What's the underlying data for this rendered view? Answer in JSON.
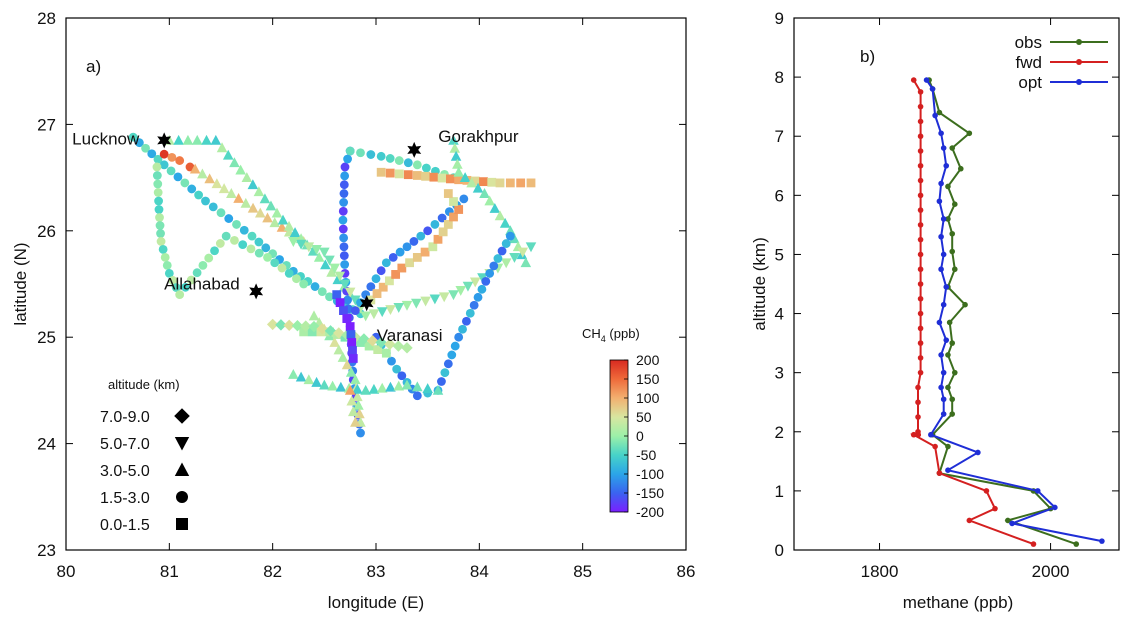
{
  "chart_data": [
    {
      "panel_label": "a)",
      "type": "scatter",
      "xlabel": "longitude (E)",
      "ylabel": "latitude (N)",
      "xlim": [
        80,
        86
      ],
      "ylim": [
        23,
        28
      ],
      "xticks": [
        80,
        81,
        82,
        83,
        84,
        85,
        86
      ],
      "yticks": [
        23,
        24,
        25,
        26,
        27,
        28
      ],
      "grid": false,
      "cities": [
        {
          "name": "Lucknow",
          "lon": 80.95,
          "lat": 26.85
        },
        {
          "name": "Gorakhpur",
          "lon": 83.37,
          "lat": 26.76
        },
        {
          "name": "Allahabad",
          "lon": 81.84,
          "lat": 25.43
        },
        {
          "name": "Varanasi",
          "lon": 82.91,
          "lat": 25.32
        }
      ],
      "colorbar": {
        "title": "CH",
        "title_sub": "4",
        "title_unit": " (ppb)",
        "min": -200,
        "max": 200,
        "ticks": [
          "200",
          "150",
          "100",
          "50",
          "0",
          "-50",
          "-100",
          "-150",
          "-200"
        ],
        "colors": [
          "#7b1fff",
          "#3a63f0",
          "#2ba5e8",
          "#47d3c8",
          "#9cf0a8",
          "#d8e6a0",
          "#f2b070",
          "#ef6a3a",
          "#d82a20"
        ]
      },
      "marker_legend": {
        "title": "altitude (km)",
        "entries": [
          {
            "label": "7.0-9.0",
            "marker": "diamond"
          },
          {
            "label": "5.0-7.0",
            "marker": "triangle-down"
          },
          {
            "label": "3.0-5.0",
            "marker": "triangle-up"
          },
          {
            "label": "1.5-3.0",
            "marker": "circle"
          },
          {
            "label": "0.0-1.5",
            "marker": "square"
          }
        ]
      },
      "tracks": [
        {
          "marker": "circle",
          "value": -60,
          "points": [
            [
              80.65,
              26.88
            ],
            [
              80.95,
              26.62
            ],
            [
              81.35,
              26.28
            ],
            [
              81.8,
              25.95
            ],
            [
              82.2,
              25.62
            ],
            [
              82.55,
              25.38
            ],
            [
              82.85,
              25.22
            ]
          ]
        },
        {
          "marker": "circle",
          "value": 160,
          "points": [
            [
              80.95,
              26.72
            ],
            [
              81.1,
              26.66
            ],
            [
              81.2,
              26.6
            ]
          ]
        },
        {
          "marker": "triangle-up",
          "value": 60,
          "points": [
            [
              81.25,
              26.58
            ],
            [
              81.6,
              26.35
            ],
            [
              81.95,
              26.12
            ],
            [
              82.3,
              25.9
            ]
          ]
        },
        {
          "marker": "triangle-up",
          "value": -20,
          "points": [
            [
              81.0,
              26.85
            ],
            [
              81.45,
              26.85
            ],
            [
              81.75,
              26.5
            ],
            [
              82.1,
              26.1
            ],
            [
              82.45,
              25.75
            ],
            [
              82.75,
              25.4
            ]
          ]
        },
        {
          "marker": "circle",
          "value": -10,
          "points": [
            [
              80.88,
              26.6
            ],
            [
              80.9,
              26.2
            ],
            [
              80.92,
              25.9
            ],
            [
              81.0,
              25.6
            ],
            [
              81.1,
              25.4
            ],
            [
              81.55,
              25.95
            ],
            [
              81.95,
              25.75
            ],
            [
              82.3,
              25.5
            ]
          ]
        },
        {
          "marker": "circle",
          "value": -140,
          "points": [
            [
              82.85,
              24.1
            ],
            [
              82.78,
              24.6
            ],
            [
              82.75,
              25.1
            ],
            [
              82.7,
              25.6
            ],
            [
              82.68,
              26.1
            ],
            [
              82.7,
              26.6
            ],
            [
              82.75,
              26.75
            ]
          ]
        },
        {
          "marker": "circle",
          "value": -40,
          "points": [
            [
              82.75,
              26.75
            ],
            [
              83.05,
              26.7
            ],
            [
              83.4,
              26.62
            ],
            [
              83.75,
              26.5
            ]
          ]
        },
        {
          "marker": "square",
          "value": 90,
          "points": [
            [
              83.05,
              26.55
            ],
            [
              83.4,
              26.52
            ],
            [
              83.8,
              26.48
            ],
            [
              84.2,
              26.45
            ],
            [
              84.5,
              26.45
            ]
          ]
        },
        {
          "marker": "triangle-up",
          "value": -20,
          "points": [
            [
              83.75,
              26.85
            ],
            [
              83.8,
              26.55
            ],
            [
              84.05,
              26.35
            ],
            [
              84.3,
              26.0
            ],
            [
              84.45,
              25.7
            ]
          ]
        },
        {
          "marker": "triangle-down",
          "value": 0,
          "points": [
            [
              84.5,
              25.85
            ],
            [
              84.1,
              25.6
            ],
            [
              83.75,
              25.4
            ],
            [
              83.3,
              25.3
            ],
            [
              82.9,
              25.2
            ],
            [
              82.5,
              25.8
            ],
            [
              82.2,
              25.9
            ]
          ]
        },
        {
          "marker": "circle",
          "value": -110,
          "points": [
            [
              83.0,
              25.0
            ],
            [
              83.2,
              24.7
            ],
            [
              83.4,
              24.45
            ],
            [
              83.6,
              24.5
            ],
            [
              83.8,
              25.0
            ],
            [
              84.1,
              25.6
            ],
            [
              84.3,
              25.95
            ]
          ]
        },
        {
          "marker": "circle",
          "value": -120,
          "points": [
            [
              82.8,
              25.25
            ],
            [
              83.1,
              25.7
            ],
            [
              83.5,
              26.0
            ],
            [
              83.85,
              26.3
            ]
          ]
        },
        {
          "marker": "square",
          "value": 80,
          "points": [
            [
              82.95,
              25.35
            ],
            [
              83.25,
              25.65
            ],
            [
              83.55,
              25.85
            ],
            [
              83.8,
              26.2
            ],
            [
              83.7,
              26.35
            ]
          ]
        },
        {
          "marker": "triangle-up",
          "value": 30,
          "points": [
            [
              82.4,
              25.2
            ],
            [
              82.6,
              24.95
            ],
            [
              82.8,
              24.6
            ],
            [
              82.85,
              24.2
            ]
          ]
        },
        {
          "marker": "square",
          "value": 10,
          "points": [
            [
              82.3,
              25.05
            ],
            [
              82.55,
              25.05
            ],
            [
              82.85,
              24.95
            ],
            [
              83.1,
              24.85
            ]
          ]
        },
        {
          "marker": "triangle-up",
          "value": -30,
          "points": [
            [
              82.2,
              24.65
            ],
            [
              82.5,
              24.55
            ],
            [
              82.9,
              24.5
            ],
            [
              83.3,
              24.55
            ],
            [
              83.6,
              24.5
            ]
          ]
        },
        {
          "marker": "diamond",
          "value": 20,
          "points": [
            [
              82.0,
              25.12
            ],
            [
              82.4,
              25.1
            ],
            [
              82.8,
              25.0
            ],
            [
              83.3,
              24.9
            ]
          ]
        },
        {
          "marker": "square",
          "value": -190,
          "points": [
            [
              82.62,
              25.4
            ],
            [
              82.75,
              25.1
            ],
            [
              82.78,
              24.8
            ]
          ]
        },
        {
          "marker": "triangle-up",
          "value": 70,
          "points": [
            [
              82.75,
              24.5
            ],
            [
              82.78,
              24.3
            ],
            [
              82.8,
              24.2
            ]
          ]
        }
      ]
    },
    {
      "panel_label": "b)",
      "type": "line",
      "xlabel": "methane (ppb)",
      "ylabel": "altitude (km)",
      "xlim": [
        1700,
        2080
      ],
      "ylim": [
        0,
        9
      ],
      "xticks": [
        1800,
        2000
      ],
      "yticks": [
        0,
        1,
        2,
        3,
        4,
        5,
        6,
        7,
        8,
        9
      ],
      "grid": false,
      "legend_position": "top-right",
      "series": [
        {
          "name": "obs",
          "color": "#3c6e1e",
          "x": [
            1858,
            1862,
            1870,
            1905,
            1885,
            1895,
            1880,
            1888,
            1880,
            1885,
            1885,
            1888,
            1880,
            1900,
            1882,
            1885,
            1880,
            1888,
            1880,
            1885,
            1885,
            1862,
            1880,
            1870,
            1980,
            2000,
            1950,
            2030
          ],
          "y": [
            7.95,
            7.8,
            7.4,
            7.05,
            6.8,
            6.45,
            6.15,
            5.85,
            5.6,
            5.35,
            5.05,
            4.75,
            4.45,
            4.15,
            3.85,
            3.5,
            3.3,
            3.0,
            2.75,
            2.55,
            2.3,
            1.95,
            1.75,
            1.3,
            1.0,
            0.7,
            0.5,
            0.1
          ]
        },
        {
          "name": "fwd",
          "color": "#d42020",
          "x": [
            1840,
            1848,
            1848,
            1848,
            1848,
            1848,
            1848,
            1848,
            1848,
            1848,
            1848,
            1848,
            1848,
            1848,
            1848,
            1848,
            1848,
            1848,
            1848,
            1848,
            1848,
            1845,
            1845,
            1845,
            1845,
            1845,
            1845,
            1845,
            1845,
            1845,
            1845,
            1845,
            1840,
            1865,
            1870,
            1925,
            1935,
            1905,
            1980
          ],
          "y": [
            7.95,
            7.75,
            7.5,
            7.25,
            7.0,
            6.75,
            6.5,
            6.25,
            6.0,
            5.75,
            5.5,
            5.25,
            5.0,
            4.75,
            4.5,
            4.25,
            4.0,
            3.75,
            3.5,
            3.25,
            3.0,
            2.75,
            2.5,
            2.25,
            2.0,
            1.95,
            1.95,
            1.95,
            1.95,
            1.95,
            1.95,
            1.95,
            1.95,
            1.75,
            1.3,
            1.0,
            0.7,
            0.5,
            0.1
          ]
        },
        {
          "name": "opt",
          "color": "#1f2ed6",
          "x": [
            1855,
            1862,
            1865,
            1872,
            1875,
            1878,
            1872,
            1870,
            1875,
            1872,
            1875,
            1872,
            1878,
            1875,
            1870,
            1878,
            1872,
            1875,
            1872,
            1875,
            1875,
            1860,
            1915,
            1880,
            1985,
            2005,
            1955,
            2060
          ],
          "y": [
            7.95,
            7.8,
            7.35,
            7.05,
            6.8,
            6.5,
            6.2,
            5.9,
            5.6,
            5.3,
            5.0,
            4.75,
            4.45,
            4.15,
            3.85,
            3.55,
            3.3,
            3.0,
            2.75,
            2.55,
            2.3,
            1.95,
            1.65,
            1.35,
            1.0,
            0.72,
            0.45,
            0.15
          ]
        }
      ]
    }
  ]
}
